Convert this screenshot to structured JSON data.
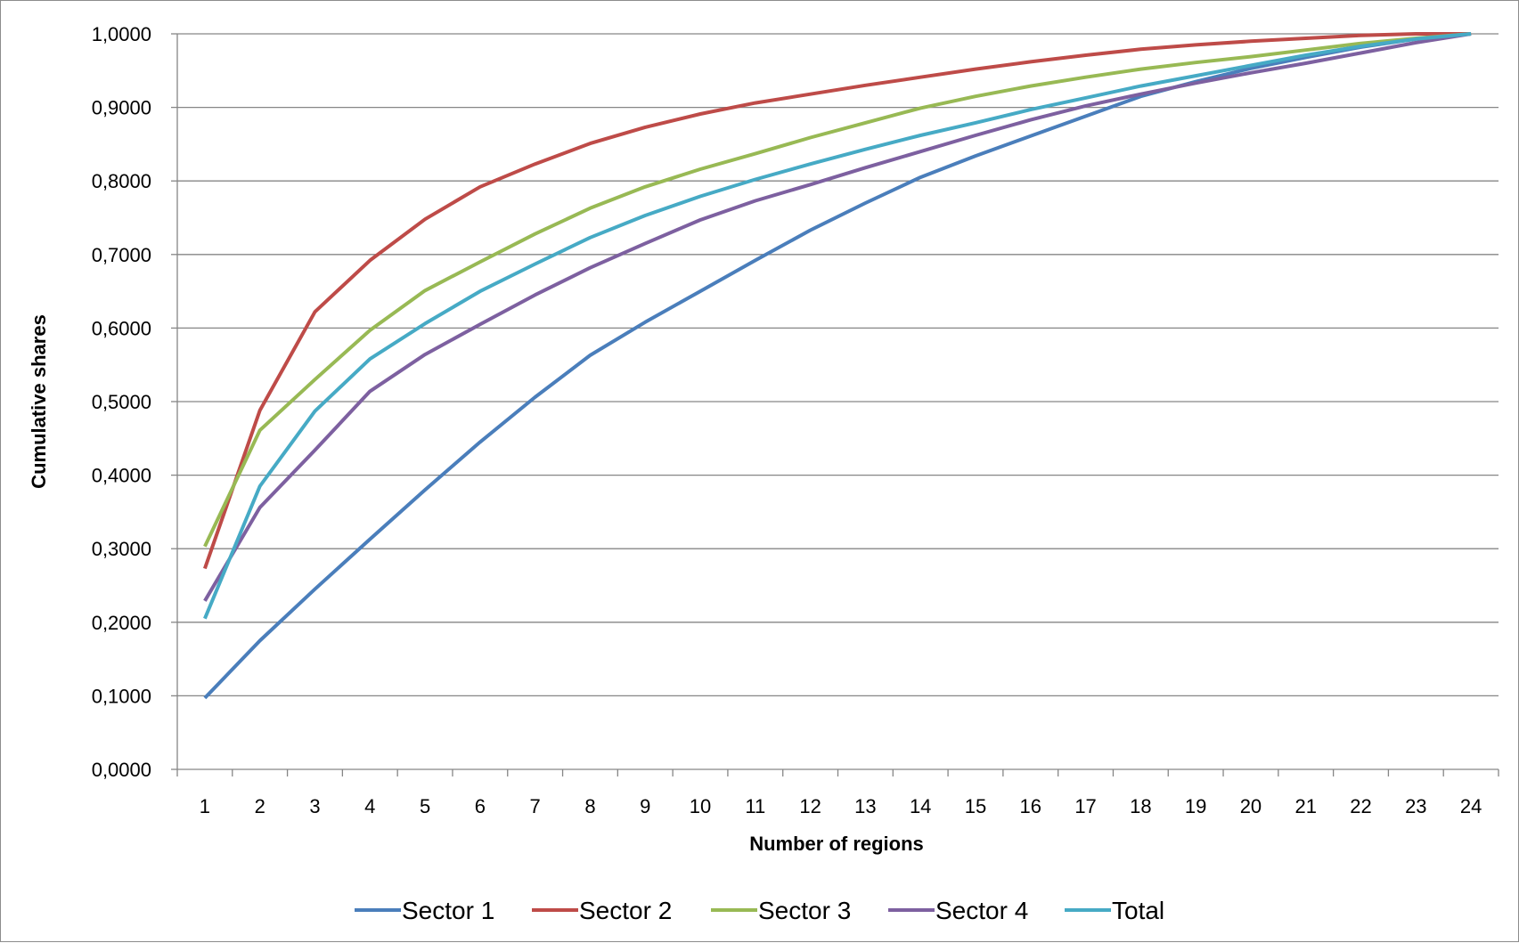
{
  "chart_data": {
    "type": "line",
    "title": "",
    "xlabel": "Number of regions",
    "ylabel": "Cumulative shares",
    "categories": [
      "1",
      "2",
      "3",
      "4",
      "5",
      "6",
      "7",
      "8",
      "9",
      "10",
      "11",
      "12",
      "13",
      "14",
      "15",
      "16",
      "17",
      "18",
      "19",
      "20",
      "21",
      "22",
      "23",
      "24"
    ],
    "ylim": [
      0,
      1
    ],
    "yticks": [
      "0,0000",
      "0,1000",
      "0,2000",
      "0,3000",
      "0,4000",
      "0,5000",
      "0,6000",
      "0,7000",
      "0,8000",
      "0,9000",
      "1,0000"
    ],
    "grid": "horizontal",
    "legend_position": "bottom",
    "series": [
      {
        "name": "Sector 1",
        "color": "#4a7ebb",
        "values": [
          0.097,
          0.175,
          0.245,
          0.313,
          0.38,
          0.445,
          0.506,
          0.563,
          0.608,
          0.65,
          0.692,
          0.733,
          0.77,
          0.805,
          0.834,
          0.861,
          0.888,
          0.915,
          0.935,
          0.953,
          0.968,
          0.982,
          0.993,
          1.0
        ]
      },
      {
        "name": "Sector 2",
        "color": "#be4b48",
        "values": [
          0.273,
          0.488,
          0.622,
          0.692,
          0.748,
          0.792,
          0.823,
          0.851,
          0.873,
          0.891,
          0.906,
          0.918,
          0.93,
          0.941,
          0.952,
          0.962,
          0.971,
          0.979,
          0.985,
          0.99,
          0.994,
          0.998,
          1.0,
          1.0
        ]
      },
      {
        "name": "Sector 3",
        "color": "#98b954",
        "values": [
          0.303,
          0.461,
          0.53,
          0.597,
          0.651,
          0.69,
          0.728,
          0.763,
          0.792,
          0.816,
          0.837,
          0.859,
          0.879,
          0.899,
          0.915,
          0.929,
          0.941,
          0.952,
          0.961,
          0.969,
          0.978,
          0.987,
          0.994,
          1.0
        ]
      },
      {
        "name": "Sector 4",
        "color": "#7d60a0",
        "values": [
          0.229,
          0.356,
          0.434,
          0.514,
          0.564,
          0.605,
          0.645,
          0.682,
          0.715,
          0.747,
          0.773,
          0.795,
          0.818,
          0.84,
          0.862,
          0.883,
          0.902,
          0.918,
          0.933,
          0.947,
          0.96,
          0.974,
          0.988,
          1.0
        ]
      },
      {
        "name": "Total",
        "color": "#46aac5",
        "values": [
          0.205,
          0.385,
          0.487,
          0.558,
          0.606,
          0.65,
          0.687,
          0.723,
          0.753,
          0.779,
          0.802,
          0.823,
          0.843,
          0.862,
          0.879,
          0.897,
          0.913,
          0.929,
          0.943,
          0.957,
          0.971,
          0.983,
          0.993,
          1.0
        ]
      }
    ]
  }
}
